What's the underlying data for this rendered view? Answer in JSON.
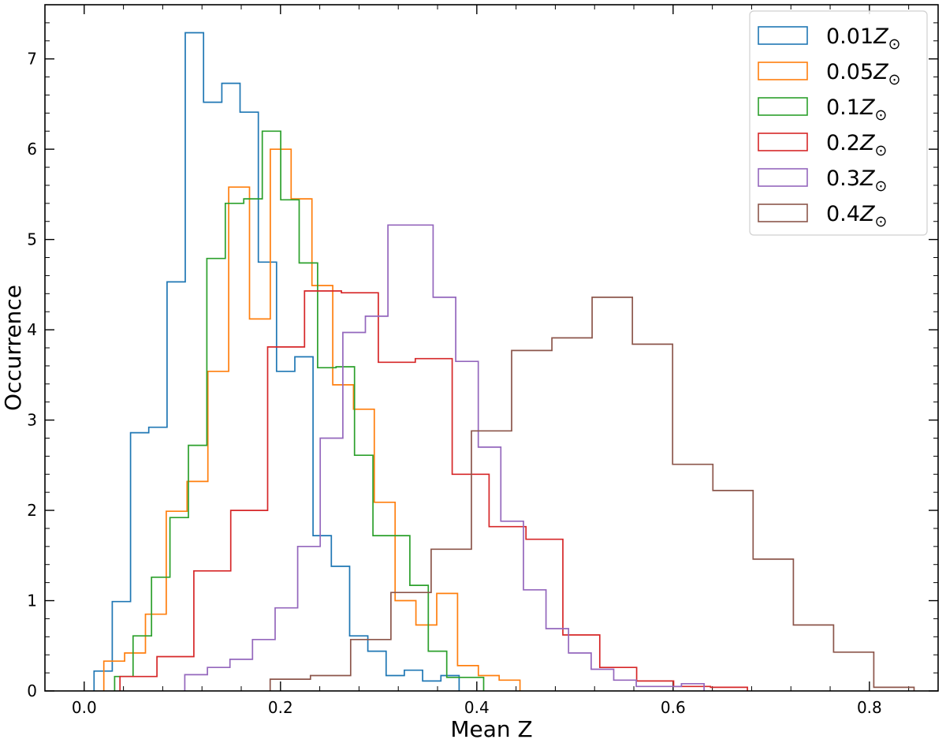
{
  "chart_data": {
    "type": "histogram",
    "xlabel": "Mean Z",
    "ylabel": "Occurrence",
    "xlim": [
      -0.04,
      0.87
    ],
    "ylim": [
      0,
      7.6
    ],
    "xticks": [
      0.0,
      0.2,
      0.4,
      0.6,
      0.8
    ],
    "xtick_labels": [
      "0.0",
      "0.2",
      "0.4",
      "0.6",
      "0.8"
    ],
    "yticks": [
      0,
      1,
      2,
      3,
      4,
      5,
      6,
      7
    ],
    "ytick_labels": [
      "0",
      "1",
      "2",
      "3",
      "4",
      "5",
      "6",
      "7"
    ],
    "legend": {
      "location": "top-right",
      "entries": [
        {
          "coef": "0.01",
          "symbol": "Z",
          "sub": "⊙",
          "color": "#1f77b4"
        },
        {
          "coef": "0.05",
          "symbol": "Z",
          "sub": "⊙",
          "color": "#ff7f0e"
        },
        {
          "coef": "0.1",
          "symbol": "Z",
          "sub": "⊙",
          "color": "#2ca02c"
        },
        {
          "coef": "0.2",
          "symbol": "Z",
          "sub": "⊙",
          "color": "#d62728"
        },
        {
          "coef": "0.3",
          "symbol": "Z",
          "sub": "⊙",
          "color": "#9467bd"
        },
        {
          "coef": "0.4",
          "symbol": "Z",
          "sub": "⊙",
          "color": "#8c564b"
        }
      ]
    },
    "series": [
      {
        "color": "#1f77b4",
        "bin_edges": [
          0.01,
          0.0286,
          0.0472,
          0.0658,
          0.0844,
          0.103,
          0.1216,
          0.1402,
          0.1588,
          0.1774,
          0.196,
          0.2146,
          0.2332,
          0.2518,
          0.2704,
          0.289,
          0.3076,
          0.3262,
          0.3448,
          0.3634,
          0.382
        ],
        "counts": [
          0.22,
          0.99,
          2.86,
          2.92,
          4.53,
          7.29,
          6.52,
          6.73,
          6.41,
          4.75,
          3.54,
          3.7,
          1.72,
          1.38,
          0.61,
          0.44,
          0.17,
          0.23,
          0.11,
          0.17
        ]
      },
      {
        "color": "#ff7f0e",
        "bin_edges": [
          0.02,
          0.0412,
          0.0624,
          0.0836,
          0.1048,
          0.126,
          0.1472,
          0.1684,
          0.1896,
          0.2108,
          0.232,
          0.2532,
          0.2744,
          0.2956,
          0.3168,
          0.338,
          0.3592,
          0.3804,
          0.4016,
          0.4228,
          0.444
        ],
        "counts": [
          0.33,
          0.42,
          0.85,
          1.99,
          2.32,
          3.54,
          5.58,
          4.12,
          6.0,
          5.45,
          4.49,
          3.39,
          3.12,
          2.09,
          1.0,
          0.73,
          1.08,
          0.28,
          0.17,
          0.12
        ]
      },
      {
        "color": "#2ca02c",
        "bin_edges": [
          0.031,
          0.0498,
          0.0686,
          0.0874,
          0.1062,
          0.125,
          0.1438,
          0.1626,
          0.1814,
          0.2002,
          0.219,
          0.2378,
          0.2566,
          0.2754,
          0.2942,
          0.313,
          0.3318,
          0.3506,
          0.3694,
          0.3882,
          0.407
        ],
        "counts": [
          0.16,
          0.61,
          1.26,
          1.92,
          2.72,
          4.79,
          5.4,
          5.45,
          6.2,
          5.44,
          4.74,
          3.58,
          3.59,
          2.61,
          1.72,
          1.72,
          1.17,
          0.44,
          0.15,
          0.15
        ]
      },
      {
        "color": "#d62728",
        "bin_edges": [
          0.0365,
          0.0741,
          0.1117,
          0.1493,
          0.1869,
          0.2245,
          0.2621,
          0.2997,
          0.3373,
          0.3749,
          0.4125,
          0.4501,
          0.4877,
          0.5253,
          0.5629,
          0.6005,
          0.6381,
          0.6757
        ],
        "counts": [
          0.16,
          0.38,
          1.33,
          2.0,
          3.81,
          4.43,
          4.41,
          3.64,
          3.68,
          2.4,
          1.82,
          1.68,
          0.62,
          0.26,
          0.11,
          0.05,
          0.04
        ]
      },
      {
        "color": "#9467bd",
        "bin_edges": [
          0.1025,
          0.1255,
          0.1485,
          0.1715,
          0.1945,
          0.2175,
          0.2405,
          0.2635,
          0.2865,
          0.3095,
          0.3325,
          0.3555,
          0.3785,
          0.4015,
          0.4245,
          0.4475,
          0.4705,
          0.4935,
          0.5165,
          0.5395,
          0.5625,
          0.5855,
          0.6085,
          0.6315
        ],
        "counts": [
          0.18,
          0.26,
          0.35,
          0.57,
          0.92,
          1.6,
          2.8,
          3.97,
          4.15,
          5.16,
          5.16,
          4.36,
          3.65,
          2.7,
          1.88,
          1.12,
          0.69,
          0.42,
          0.24,
          0.12,
          0.05,
          0.05,
          0.08
        ]
      },
      {
        "color": "#8c564b",
        "bin_edges": [
          0.1895,
          0.2305,
          0.2715,
          0.3125,
          0.3535,
          0.3945,
          0.4355,
          0.4765,
          0.5175,
          0.5585,
          0.5995,
          0.6405,
          0.6815,
          0.7225,
          0.7635,
          0.8045,
          0.8455
        ],
        "counts": [
          0.13,
          0.17,
          0.57,
          1.09,
          1.57,
          2.88,
          3.77,
          3.91,
          4.36,
          3.84,
          2.51,
          2.22,
          1.46,
          0.73,
          0.43,
          0.04
        ]
      }
    ]
  }
}
